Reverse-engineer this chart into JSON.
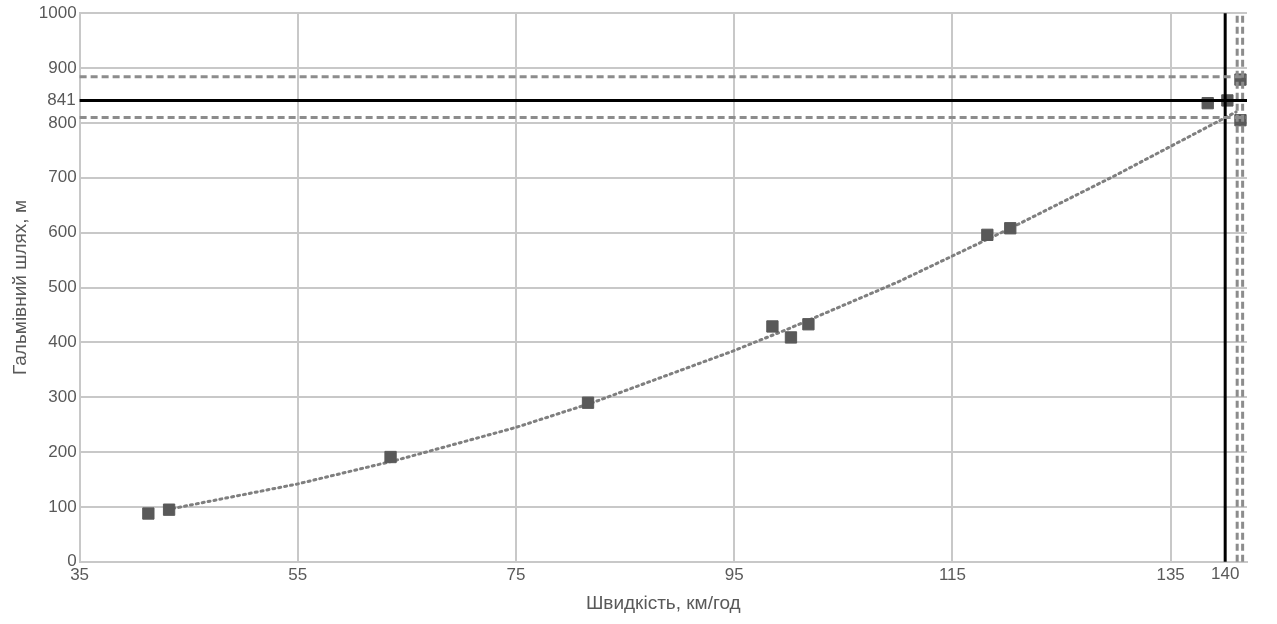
{
  "chart_data": {
    "type": "scatter",
    "xlabel": "Швидкість, км/год",
    "ylabel": "Гальмівний шлях, м",
    "xlim": [
      35,
      142
    ],
    "ylim": [
      0,
      1000
    ],
    "xticks": [
      35,
      55,
      75,
      95,
      115,
      135
    ],
    "yticks": [
      0,
      100,
      200,
      300,
      400,
      500,
      600,
      700,
      800,
      900,
      1000
    ],
    "grid": true,
    "legend": false,
    "series": [
      {
        "color": "#595959",
        "marker": "square",
        "x": [
          41.3,
          43.2,
          63.5,
          81.6,
          98.5,
          100.2,
          101.8,
          118.2,
          120.3,
          138.4,
          140.2,
          141.4,
          141.4
        ],
        "values": [
          88,
          95,
          191,
          290,
          429,
          409,
          433,
          596,
          608,
          836,
          841,
          879,
          805
        ]
      },
      {
        "type": "line",
        "color": "#7f7f7f",
        "marker": "none",
        "line_style": "dotted",
        "x": [
          43,
          55,
          64,
          75,
          82,
          95,
          100,
          110,
          120,
          130,
          141
        ],
        "values": [
          95,
          142,
          185,
          245,
          290,
          385,
          425,
          510,
          605,
          705,
          820
        ]
      }
    ],
    "ref_lines": [
      {
        "axis": "y",
        "value": 841,
        "label": "841",
        "color": "#000000",
        "line_style": "solid"
      },
      {
        "axis": "y",
        "value": 884,
        "color": "#8c8c8c",
        "line_style": "dashed"
      },
      {
        "axis": "y",
        "value": 810,
        "color": "#8c8c8c",
        "line_style": "dashed"
      },
      {
        "axis": "x",
        "value": 140,
        "label": "140",
        "color": "#000000",
        "line_style": "solid"
      },
      {
        "axis": "x",
        "value": 141.1,
        "color": "#8c8c8c",
        "line_style": "dashed"
      },
      {
        "axis": "x",
        "value": 141.6,
        "color": "#8c8c8c",
        "line_style": "dashed"
      }
    ]
  }
}
